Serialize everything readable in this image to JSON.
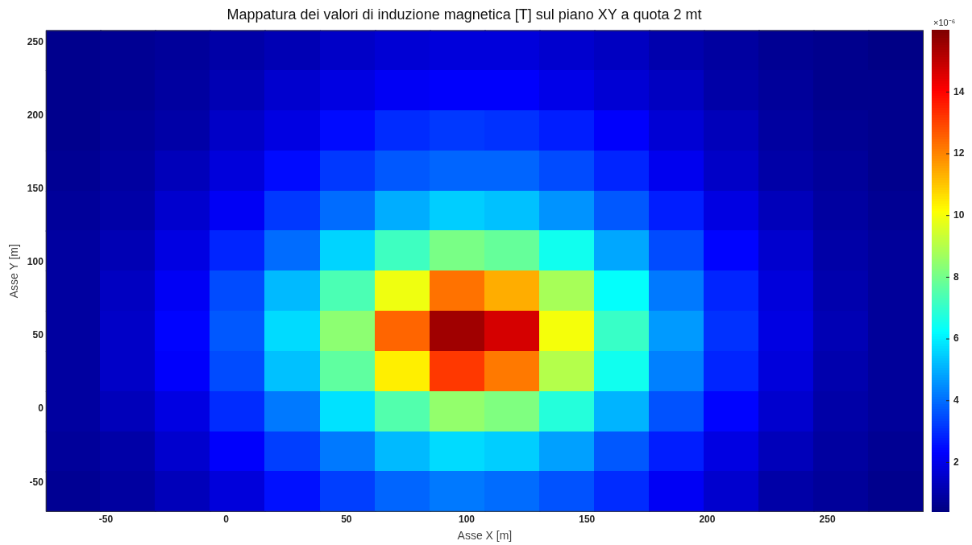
{
  "chart_data": {
    "type": "heatmap",
    "title": "Mappatura dei valori di induzione magnetica [T] sul piano XY a quota 2 mt",
    "xlabel": "Asse X [m]",
    "ylabel": "Asse Y [m]",
    "clabel": "×10⁻⁶",
    "x": [
      -63.6,
      -40.8,
      -18,
      4.8,
      27.6,
      50.4,
      73.2,
      96,
      118.8,
      141.6,
      164.4,
      187.2,
      210,
      232.8,
      255.6,
      278.4
    ],
    "y": [
      244.3,
      217,
      189.7,
      162.3,
      135,
      107.7,
      80.3,
      53,
      25.7,
      -1.7,
      -29,
      -56.3
    ],
    "cells": [
      [
        0.6,
        0.7,
        0.8,
        1.0,
        1.2,
        1.5,
        1.7,
        1.8,
        1.8,
        1.6,
        1.4,
        1.1,
        0.9,
        0.7,
        0.6,
        0.5
      ],
      [
        0.6,
        0.7,
        0.9,
        1.2,
        1.6,
        1.9,
        2.2,
        2.3,
        2.3,
        2.0,
        1.7,
        1.4,
        1.0,
        0.8,
        0.6,
        0.6
      ],
      [
        0.6,
        0.8,
        1.0,
        1.5,
        1.9,
        2.5,
        3.0,
        3.2,
        3.1,
        2.8,
        2.3,
        1.7,
        1.3,
        0.9,
        0.7,
        0.6
      ],
      [
        0.7,
        0.9,
        1.3,
        1.8,
        2.5,
        3.2,
        3.7,
        3.9,
        3.9,
        3.5,
        2.9,
        2.1,
        1.5,
        1.0,
        0.8,
        0.6
      ],
      [
        0.8,
        1.0,
        1.6,
        2.2,
        3.2,
        4.0,
        5.0,
        5.5,
        5.3,
        4.6,
        3.7,
        2.8,
        1.9,
        1.3,
        0.9,
        0.7
      ],
      [
        0.9,
        1.2,
        1.9,
        2.9,
        4.0,
        5.6,
        7.2,
        8.1,
        7.8,
        6.5,
        4.9,
        3.5,
        2.4,
        1.6,
        1.0,
        0.8
      ],
      [
        0.9,
        1.4,
        2.2,
        3.5,
        5.2,
        7.4,
        9.9,
        12.3,
        11.4,
        8.8,
        6.3,
        4.2,
        2.9,
        1.8,
        1.1,
        0.8
      ],
      [
        0.9,
        1.5,
        2.4,
        3.7,
        5.7,
        8.4,
        12.5,
        15.5,
        14.7,
        10.0,
        7.1,
        4.7,
        3.1,
        1.9,
        1.2,
        0.8
      ],
      [
        0.9,
        1.5,
        2.3,
        3.5,
        5.3,
        7.7,
        10.4,
        13.2,
        12.2,
        9.0,
        6.5,
        4.3,
        2.9,
        1.8,
        1.1,
        0.8
      ],
      [
        0.9,
        1.3,
        1.9,
        3.0,
        4.2,
        5.8,
        7.5,
        8.5,
        8.2,
        6.8,
        5.1,
        3.6,
        2.4,
        1.6,
        1.0,
        0.8
      ],
      [
        0.8,
        1.0,
        1.6,
        2.3,
        3.3,
        4.2,
        5.2,
        5.7,
        5.5,
        4.8,
        3.7,
        2.8,
        1.9,
        1.3,
        0.9,
        0.7
      ],
      [
        0.7,
        0.9,
        1.3,
        1.8,
        2.6,
        3.3,
        3.9,
        4.2,
        4.0,
        3.6,
        3.0,
        2.2,
        1.6,
        1.0,
        0.8,
        0.6
      ]
    ],
    "xlim": [
      -75,
      290
    ],
    "ylim": [
      -70,
      258
    ],
    "xticks": [
      -50,
      0,
      50,
      100,
      150,
      200,
      250
    ],
    "yticks": [
      -50,
      0,
      50,
      100,
      150,
      200,
      250
    ],
    "clim": [
      0.4,
      16
    ],
    "cticks": [
      2,
      4,
      6,
      8,
      10,
      12,
      14
    ]
  }
}
